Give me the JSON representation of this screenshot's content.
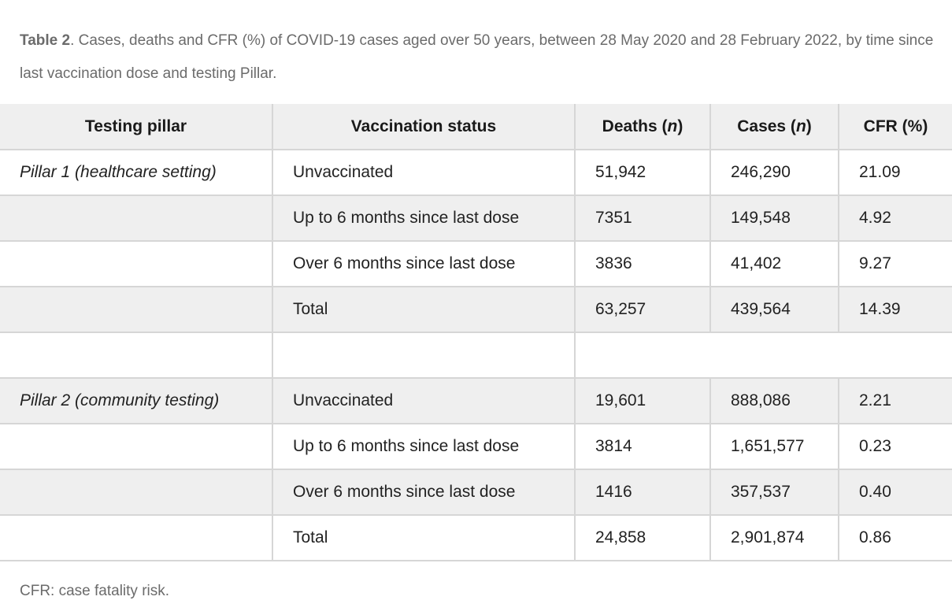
{
  "caption": {
    "label": "Table 2",
    "text": ". Cases, deaths and CFR (%) of COVID-19 cases aged over 50 years, between 28 May 2020 and 28 February 2022, by time since last vaccination dose and testing Pillar."
  },
  "table": {
    "headers": {
      "pillar": "Testing pillar",
      "status": "Vaccination status",
      "deaths_label": "Deaths (",
      "deaths_n": "n",
      "cases_label": "Cases (",
      "cases_n": "n",
      "paren_close": ")",
      "cfr": "CFR (%)"
    },
    "rows": [
      {
        "pillar": "Pillar 1 (healthcare setting)",
        "status": "Unvaccinated",
        "deaths": "51,942",
        "cases": "246,290",
        "cfr": "21.09"
      },
      {
        "pillar": "",
        "status": "Up to 6 months since last dose",
        "deaths": "7351",
        "cases": "149,548",
        "cfr": "4.92"
      },
      {
        "pillar": "",
        "status": "Over 6 months since last dose",
        "deaths": "3836",
        "cases": "41,402",
        "cfr": "9.27"
      },
      {
        "pillar": "",
        "status": "Total",
        "deaths": "63,257",
        "cases": "439,564",
        "cfr": "14.39"
      },
      {
        "pillar": "Pillar 2 (community testing)",
        "status": "Unvaccinated",
        "deaths": "19,601",
        "cases": "888,086",
        "cfr": "2.21"
      },
      {
        "pillar": "",
        "status": "Up to 6 months since last dose",
        "deaths": "3814",
        "cases": "1,651,577",
        "cfr": "0.23"
      },
      {
        "pillar": "",
        "status": "Over 6 months since last dose",
        "deaths": "1416",
        "cases": "357,537",
        "cfr": "0.40"
      },
      {
        "pillar": "",
        "status": "Total",
        "deaths": "24,858",
        "cases": "2,901,874",
        "cfr": "0.86"
      }
    ]
  },
  "footnote": "CFR: case fatality risk.",
  "colors": {
    "header_bg": "#efefef",
    "shaded_row_bg": "#efefef",
    "border": "#d6d6d6",
    "caption_text": "#6b6b6b"
  }
}
